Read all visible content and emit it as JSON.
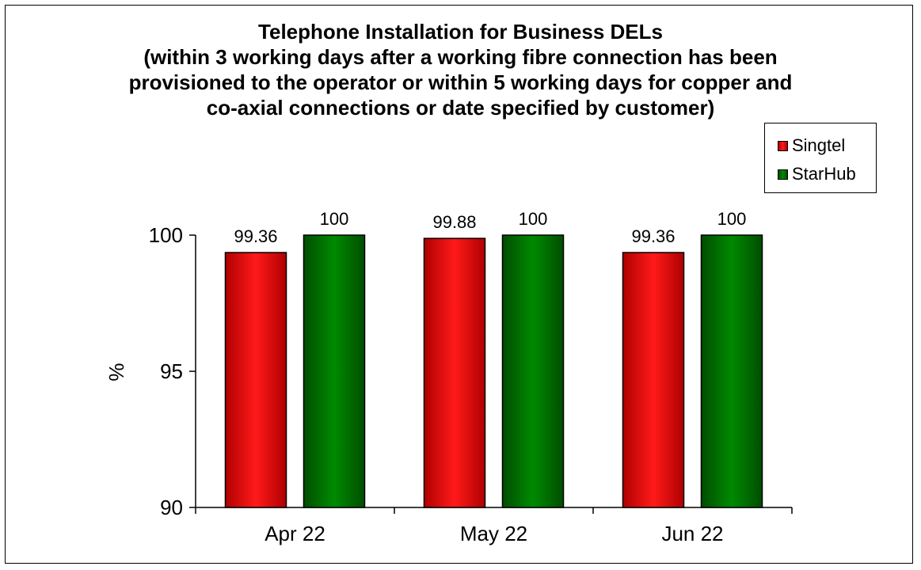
{
  "colors": {
    "singtel": "#ff0000",
    "starhub": "#008000",
    "frame": "#000000"
  },
  "chart_data": {
    "type": "bar",
    "title": [
      "Telephone Installation for Business DELs",
      "(within 3 working days after a working fibre connection has been",
      "provisioned to the operator or within 5 working days for copper and",
      "co-axial connections or date specified by customer)"
    ],
    "categories": [
      "Apr 22",
      "May 22",
      "Jun 22"
    ],
    "series": [
      {
        "name": "Singtel",
        "values": [
          99.36,
          99.88,
          99.36
        ],
        "labels": [
          "99.36",
          "99.88",
          "99.36"
        ],
        "color": "#ff0000"
      },
      {
        "name": "StarHub",
        "values": [
          100,
          100,
          100
        ],
        "labels": [
          "100",
          "100",
          "100"
        ],
        "color": "#008000"
      }
    ],
    "ylabel": "%",
    "xlabel": "",
    "ylim": [
      90,
      100
    ],
    "yticks": [
      "90",
      "95",
      "100"
    ],
    "grid": false,
    "legend": "top-right"
  }
}
